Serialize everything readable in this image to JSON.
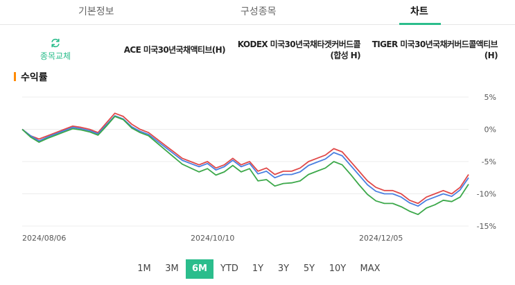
{
  "tabs": [
    {
      "label": "기본정보",
      "active": false
    },
    {
      "label": "구성종목",
      "active": false
    },
    {
      "label": "차트",
      "active": true
    }
  ],
  "swap": {
    "label": "종목교체",
    "icon": "refresh-icon",
    "color": "#2bbd8c"
  },
  "funds": [
    {
      "name": "ACE 미국30년국채액티브(H)"
    },
    {
      "name": "KODEX 미국30년국채타겟커버드콜(합성 H)"
    },
    {
      "name": "TIGER 미국30년국채커버드콜액티브(H)"
    }
  ],
  "section": {
    "title": "수익률",
    "accent": "#ff8a00"
  },
  "chart_data": {
    "type": "line",
    "x_tick_labels": [
      "2024/08/06",
      "2024/10/10",
      "2024/12/05"
    ],
    "x_tick_index": [
      0,
      20,
      40
    ],
    "y_tick_labels": [
      "5%",
      "0%",
      "-5%",
      "-10%",
      "-15%"
    ],
    "y_ticks": [
      5,
      0,
      -5,
      -10,
      -15
    ],
    "ylim": [
      -15,
      5
    ],
    "grid": true,
    "series": [
      {
        "color": "#e04848",
        "values": [
          0,
          -1,
          -1.5,
          -1,
          -0.5,
          0,
          0.5,
          0.3,
          0,
          -0.5,
          1,
          2.5,
          2,
          0.8,
          0,
          -0.5,
          -1.5,
          -2.5,
          -3.5,
          -4.5,
          -5,
          -5.5,
          -5,
          -6,
          -5.5,
          -4.5,
          -5.5,
          -5,
          -6.5,
          -6,
          -7,
          -6.5,
          -6.5,
          -6,
          -5,
          -4.5,
          -4,
          -3,
          -3.5,
          -5,
          -6.5,
          -8,
          -9,
          -9.5,
          -9.5,
          -10,
          -11,
          -11.5,
          -10.5,
          -10,
          -9.5,
          -10,
          -9,
          -7
        ]
      },
      {
        "color": "#4a7fe0",
        "values": [
          0,
          -1,
          -1.8,
          -1.2,
          -0.7,
          -0.2,
          0.3,
          0.1,
          -0.2,
          -0.7,
          0.7,
          2.1,
          1.6,
          0.4,
          -0.3,
          -0.8,
          -1.8,
          -2.8,
          -3.8,
          -4.8,
          -5.3,
          -5.8,
          -5.3,
          -6.3,
          -5.8,
          -4.8,
          -5.8,
          -5.3,
          -6.9,
          -6.5,
          -7.5,
          -7,
          -7,
          -6.6,
          -5.6,
          -5.1,
          -4.6,
          -3.6,
          -4.1,
          -5.6,
          -7.1,
          -8.6,
          -9.6,
          -10,
          -10,
          -10.5,
          -11.4,
          -11.9,
          -11,
          -10.5,
          -10,
          -10.4,
          -9.4,
          -7.5
        ]
      },
      {
        "color": "#3ca84a",
        "values": [
          0,
          -1.2,
          -2,
          -1.4,
          -0.9,
          -0.4,
          0.1,
          -0.1,
          -0.4,
          -0.9,
          0.5,
          2,
          1.5,
          0.2,
          -0.5,
          -1,
          -2.1,
          -3.2,
          -4.3,
          -5.4,
          -6,
          -6.6,
          -6.1,
          -7.1,
          -6.6,
          -5.6,
          -6.6,
          -6.1,
          -8,
          -7.8,
          -8.8,
          -8.4,
          -8.3,
          -8,
          -7,
          -6.5,
          -6,
          -5,
          -5.5,
          -7,
          -8.6,
          -10.1,
          -11.1,
          -11.5,
          -11.5,
          -12,
          -12.7,
          -13.2,
          -12.2,
          -11.7,
          -11,
          -11.2,
          -10.5,
          -8.5
        ]
      }
    ]
  },
  "periods": [
    {
      "label": "1M",
      "active": false
    },
    {
      "label": "3M",
      "active": false
    },
    {
      "label": "6M",
      "active": true
    },
    {
      "label": "YTD",
      "active": false
    },
    {
      "label": "1Y",
      "active": false
    },
    {
      "label": "3Y",
      "active": false
    },
    {
      "label": "5Y",
      "active": false
    },
    {
      "label": "10Y",
      "active": false
    },
    {
      "label": "MAX",
      "active": false
    }
  ]
}
